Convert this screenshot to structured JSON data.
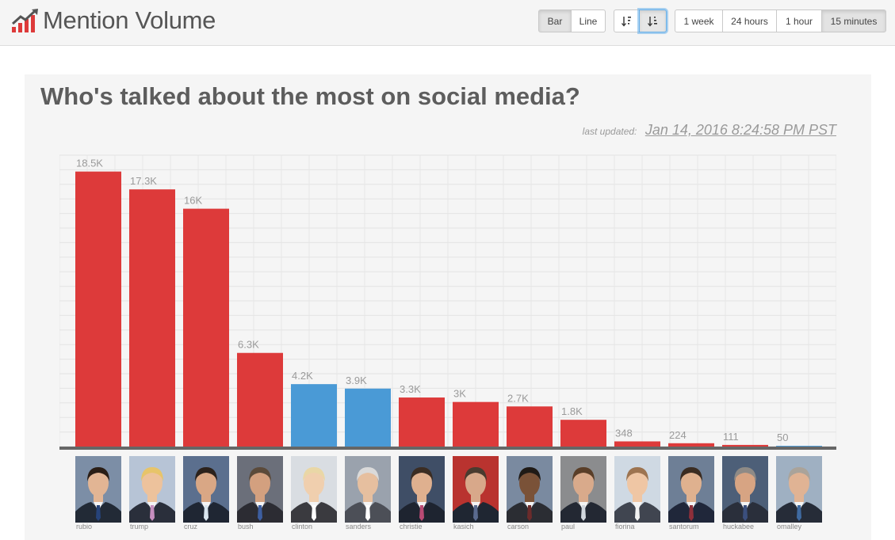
{
  "header": {
    "title": "Mention Volume",
    "chart_type_buttons": [
      "Bar",
      "Line"
    ],
    "active_chart_type": "Bar",
    "sort_buttons": [
      "sort-ascending-icon",
      "sort-descending-icon"
    ],
    "active_sort": "sort-descending-icon",
    "range_buttons": [
      "1 week",
      "24 hours",
      "1 hour",
      "15 minutes"
    ],
    "active_range": "15 minutes"
  },
  "card": {
    "title": "Who's talked about the most on social media?",
    "updated_label": "last updated:",
    "updated_value": "Jan 14, 2016 8:24:58 PM PST"
  },
  "colors": {
    "republican": "#dd3a3a",
    "democrat": "#4a9ad6",
    "baseline": "#666666",
    "label": "#9a9a9a"
  },
  "chart_data": {
    "type": "bar",
    "title": "Who's talked about the most on social media?",
    "categories": [
      "rubio",
      "trump",
      "cruz",
      "bush",
      "clinton",
      "sanders",
      "christie",
      "kasich",
      "carson",
      "paul",
      "fiorina",
      "santorum",
      "huckabee",
      "omalley"
    ],
    "values": [
      18500,
      17300,
      16000,
      6300,
      4200,
      3900,
      3300,
      3000,
      2700,
      1800,
      348,
      224,
      111,
      50
    ],
    "labels": [
      "18.5K",
      "17.3K",
      "16K",
      "6.3K",
      "4.2K",
      "3.9K",
      "3.3K",
      "3K",
      "2.7K",
      "1.8K",
      "348",
      "224",
      "111",
      "50"
    ],
    "party": [
      "R",
      "R",
      "R",
      "R",
      "D",
      "D",
      "R",
      "R",
      "R",
      "R",
      "R",
      "R",
      "R",
      "D"
    ],
    "ylim": [
      0,
      19600
    ],
    "grid": true,
    "legend": "none"
  }
}
